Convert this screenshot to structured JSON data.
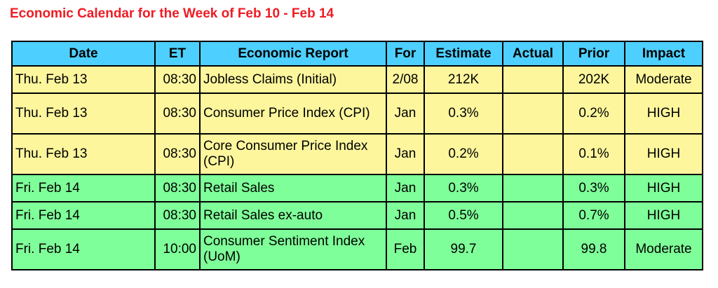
{
  "title": "Economic Calendar for the Week of Feb 10 - Feb 14",
  "colors": {
    "title": "#ee1c24",
    "header_bg": "#4dd0ff",
    "yellow_row": "#fdf69d",
    "green_row": "#7fff99"
  },
  "headers": {
    "date": "Date",
    "et": "ET",
    "report": "Economic Report",
    "for": "For",
    "estimate": "Estimate",
    "actual": "Actual",
    "prior": "Prior",
    "impact": "Impact"
  },
  "rows": [
    {
      "date": "Thu. Feb 13",
      "et": "08:30",
      "report": "Jobless Claims (Initial)",
      "for": "2/08",
      "estimate": "212K",
      "actual": "",
      "prior": "202K",
      "impact": "Moderate",
      "color": "yellow"
    },
    {
      "date": "Thu. Feb 13",
      "et": "08:30",
      "report": "Consumer Price Index (CPI)",
      "for": "Jan",
      "estimate": "0.3%",
      "actual": "",
      "prior": "0.2%",
      "impact": "HIGH",
      "color": "yellow"
    },
    {
      "date": "Thu. Feb 13",
      "et": "08:30",
      "report": "Core Consumer Price Index (CPI)",
      "for": "Jan",
      "estimate": "0.2%",
      "actual": "",
      "prior": "0.1%",
      "impact": "HIGH",
      "color": "yellow"
    },
    {
      "date": "Fri. Feb 14",
      "et": "08:30",
      "report": "Retail Sales",
      "for": "Jan",
      "estimate": "0.3%",
      "actual": "",
      "prior": "0.3%",
      "impact": "HIGH",
      "color": "green"
    },
    {
      "date": "Fri. Feb 14",
      "et": "08:30",
      "report": "Retail Sales ex-auto",
      "for": "Jan",
      "estimate": "0.5%",
      "actual": "",
      "prior": "0.7%",
      "impact": "HIGH",
      "color": "green"
    },
    {
      "date": "Fri. Feb 14",
      "et": "10:00",
      "report": "Consumer Sentiment Index (UoM)",
      "for": "Feb",
      "estimate": "99.7",
      "actual": "",
      "prior": "99.8",
      "impact": "Moderate",
      "color": "green"
    }
  ]
}
